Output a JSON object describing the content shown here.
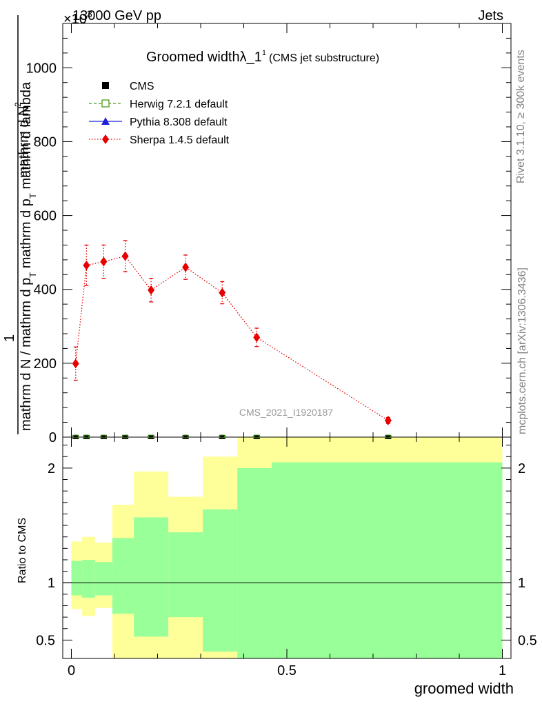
{
  "header": {
    "top_left": "13000 GeV pp",
    "top_right": "Jets",
    "exponent_label": "×10",
    "exponent_power": "3"
  },
  "side": {
    "rivet": "Rivet 3.1.10, ≥ 300k events",
    "mcplots": "mcplots.cern.ch [arXiv:1306.3436]"
  },
  "chart_data": {
    "type": "line",
    "title": "Groomed width",
    "title_symbol": "λ_1",
    "title_superscript": "1",
    "title_sub": "(CMS jet substructure)",
    "analysis_label": "CMS_2021_I1920187",
    "ylabel_numerator": "mathrm d²N",
    "ylabel_numerator_display": "mathrm d N",
    "ylabel_numerator_sup": "2",
    "ylabel_one": "1",
    "ylabel_denominator": "mathrm d N / mathrm d p_T mathrm d p_T mathrm d lambda",
    "ylabel_den_main": "mathrm d N / mathrm d p",
    "ylabel_den_sub1": "T",
    "ylabel_den_mid": " mathrm d p",
    "ylabel_den_sub2": "T",
    "ylabel_den_end": " mathrm d lambda",
    "xlabel": "groomed width",
    "ratio_ylabel": "Ratio to CMS",
    "xlim": [
      -0.02,
      1.02
    ],
    "ylim": [
      0,
      1120
    ],
    "y_ticks": [
      0,
      200,
      400,
      600,
      800,
      1000
    ],
    "y_tick_labels": [
      "0",
      "200",
      "400",
      "600",
      "800",
      "1000"
    ],
    "x_ticks": [
      0,
      0.5,
      1
    ],
    "x_tick_labels": [
      "0",
      "0.5",
      "1"
    ],
    "ratio_ylim": [
      0.34,
      2.27
    ],
    "ratio_ticks": [
      0.5,
      1,
      2
    ],
    "ratio_tick_labels": [
      "0.5",
      "1",
      "2"
    ],
    "legend": {
      "position": "top-left",
      "entries": [
        {
          "name": "CMS",
          "color": "#000000",
          "marker": "square",
          "line": "none"
        },
        {
          "name": "Herwig 7.2.1 default",
          "color": "#4a9a1a",
          "marker": "open-square",
          "line": "dashed"
        },
        {
          "name": "Pythia 8.308 default",
          "color": "#1f1fd8",
          "marker": "triangle",
          "line": "solid"
        },
        {
          "name": "Sherpa 1.4.5 default",
          "color": "#e60000",
          "marker": "diamond",
          "line": "dotted"
        }
      ]
    },
    "cms": {
      "x": [
        0.01,
        0.035,
        0.075,
        0.125,
        0.185,
        0.265,
        0.35,
        0.43,
        0.735
      ],
      "y": [
        0,
        0,
        0,
        0,
        0,
        0,
        0,
        0,
        0
      ]
    },
    "sherpa": {
      "name": "Sherpa 1.4.5 default",
      "x": [
        0.01,
        0.035,
        0.075,
        0.125,
        0.185,
        0.265,
        0.35,
        0.43,
        0.735
      ],
      "y": [
        199,
        465,
        475,
        490,
        398,
        460,
        391,
        270,
        45
      ],
      "err": [
        45,
        55,
        45,
        42,
        32,
        33,
        30,
        25,
        8
      ]
    },
    "ratio_bands": [
      {
        "x0": 0.0,
        "x1": 0.025,
        "stat_lo": 0.89,
        "stat_hi": 1.19,
        "tot_lo": 0.77,
        "tot_hi": 1.36
      },
      {
        "x0": 0.025,
        "x1": 0.055,
        "stat_lo": 0.87,
        "stat_hi": 1.2,
        "tot_lo": 0.71,
        "tot_hi": 1.4
      },
      {
        "x0": 0.055,
        "x1": 0.095,
        "stat_lo": 0.89,
        "stat_hi": 1.18,
        "tot_lo": 0.78,
        "tot_hi": 1.35
      },
      {
        "x0": 0.095,
        "x1": 0.145,
        "stat_lo": 0.73,
        "stat_hi": 1.39,
        "tot_lo": 0.34,
        "tot_hi": 1.68
      },
      {
        "x0": 0.145,
        "x1": 0.225,
        "stat_lo": 0.53,
        "stat_hi": 1.57,
        "tot_lo": 0.34,
        "tot_hi": 1.97
      },
      {
        "x0": 0.225,
        "x1": 0.305,
        "stat_lo": 0.7,
        "stat_hi": 1.44,
        "tot_lo": 0.34,
        "tot_hi": 1.75
      },
      {
        "x0": 0.305,
        "x1": 0.385,
        "stat_lo": 0.4,
        "stat_hi": 1.64,
        "tot_lo": 0.34,
        "tot_hi": 2.1
      },
      {
        "x0": 0.385,
        "x1": 0.465,
        "stat_lo": 0.34,
        "stat_hi": 2.0,
        "tot_lo": 0.34,
        "tot_hi": 2.27
      },
      {
        "x0": 0.465,
        "x1": 1.0,
        "stat_lo": 0.34,
        "stat_hi": 2.05,
        "tot_lo": 0.34,
        "tot_hi": 2.27
      }
    ],
    "colors": {
      "stat_band": "#99ff99",
      "total_band": "#ffff99",
      "axis": "#000000",
      "side_text": "#808080",
      "analysis_text": "#999999"
    }
  }
}
